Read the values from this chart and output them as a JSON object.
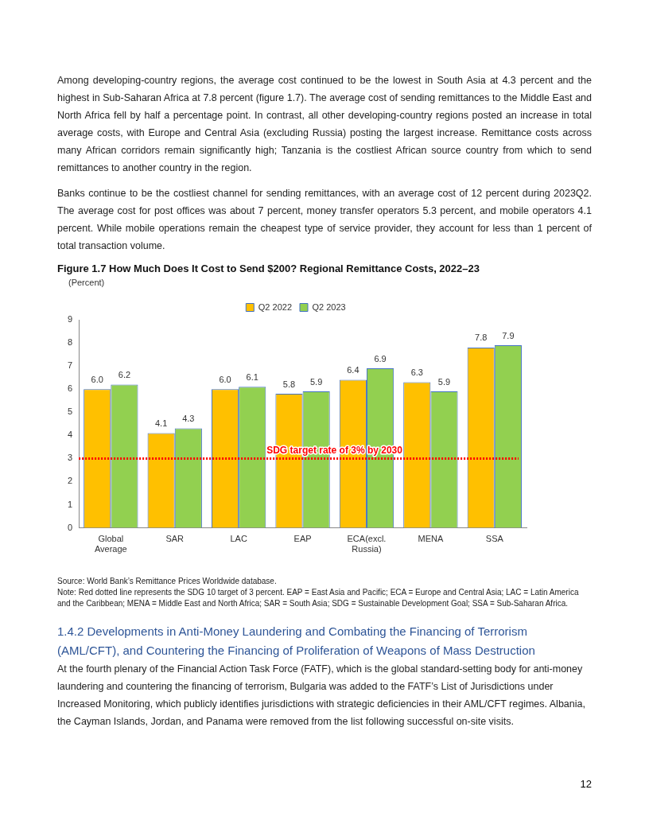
{
  "chart_data": {
    "type": "bar",
    "title": "Figure 1.7 How Much Does It Cost to Send $200? Regional Remittance Costs, 2022–23",
    "ylabel": "(Percent)",
    "categories": [
      "Global Average",
      "SAR",
      "LAC",
      "EAP",
      "ECA(excl. Russia)",
      "MENA",
      "SSA"
    ],
    "series": [
      {
        "name": "Q2 2022",
        "color": "#ffc000",
        "values": [
          6.0,
          4.1,
          6.0,
          5.8,
          6.4,
          6.3,
          7.8
        ],
        "value_labels": [
          "6.0",
          "4.1",
          "6.0",
          "5.8",
          "6.4",
          "6.3",
          "7.8"
        ]
      },
      {
        "name": "Q2 2023",
        "color": "#92d050",
        "values": [
          6.2,
          4.3,
          6.1,
          5.9,
          6.9,
          5.9,
          7.9
        ],
        "value_labels": [
          "6.2",
          "4.3",
          "6.1",
          "5.9",
          "6.9",
          "5.9",
          "7.9"
        ]
      }
    ],
    "ylim": [
      0,
      9
    ],
    "yticks": [
      0,
      1,
      2,
      3,
      4,
      5,
      6,
      7,
      8,
      9
    ],
    "grid": false,
    "legend": "top",
    "ref_lines": [
      {
        "axis": "y",
        "value": 3,
        "label": "SDG target rate of 3% by 2030",
        "color": "#ff0000",
        "line_style": "dotted"
      }
    ],
    "annotations": [
      "Among developing-country regions, the average cost continued to be the lowest in South Asia at 4.3 percent and the highest in Sub-Saharan Africa at 7.8 percent (figure 1.7). The average cost of sending remittances to the Middle East and North Africa fell by half a percentage point. In contrast, all other developing-country regions posted an increase in total average costs, with Europe and Central Asia (excluding Russia) posting the largest increase. Remittance costs across many African corridors remain significantly high; Tanzania is the costliest African source country from which to send remittances to another country in the region.",
      "Banks continue to be the costliest channel for sending remittances, with an average cost of 12 percent during 2023Q2. The average cost for post offices was about 7 percent, money transfer operators 5.3 percent, and mobile operators 4.1 percent. While mobile operations remain the cheapest type of service provider, they account for less than 1 percent of total transaction volume.",
      "Source: World Bank’s Remittance Prices Worldwide database.",
      "Note: Red dotted line represents the SDG 10 target of 3 percent. EAP = East Asia and Pacific; ECA = Europe and Central Asia; LAC = Latin America and the Caribbean; MENA = Middle East and North Africa; SAR = South Asia; SDG = Sustainable Development Goal; SSA = Sub-Saharan Africa.",
      "1.4.2 Developments in Anti-Money Laundering and Combating the Financing of Terrorism (AML/CFT), and Countering the Financing of Proliferation of Weapons of Mass Destruction",
      "At the fourth plenary of the Financial Action Task Force (FATF), which is the global standard-setting body for anti-money laundering and countering the financing of terrorism, Bulgaria was added to the FATF’s List of Jurisdictions under Increased Monitoring, which publicly identifies jurisdictions with strategic deficiencies in their AML/CFT regimes. Albania, the Cayman Islands, Jordan, and Panama were removed from the list following successful on-site visits.",
      "12"
    ]
  }
}
